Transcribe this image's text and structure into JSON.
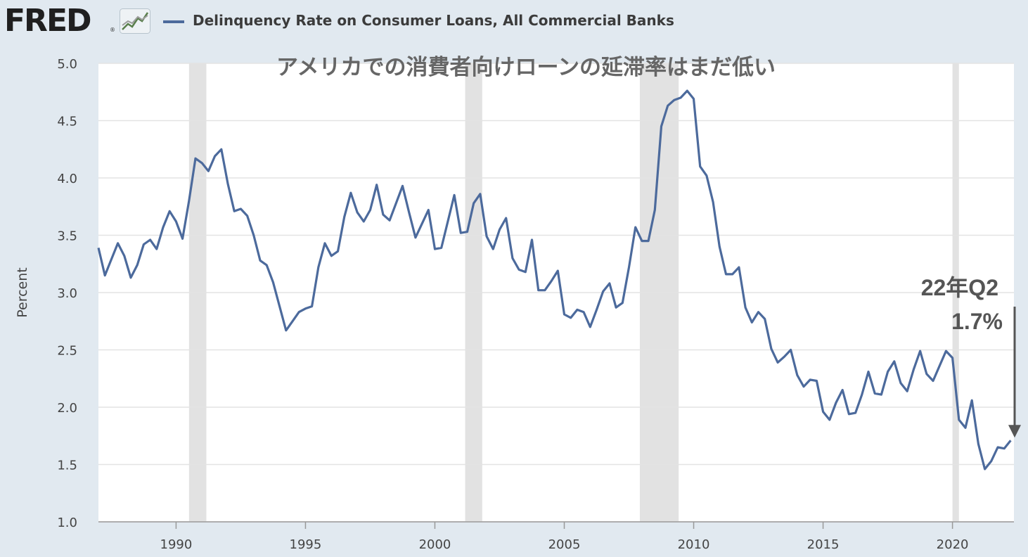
{
  "header": {
    "logo_text": "FRED",
    "logo_reg": "®",
    "series_legend": "Delinquency Rate on Consumer Loans, All Commercial Banks"
  },
  "colors": {
    "line": "#4c6a9c",
    "recession": "#e2e2e2",
    "background": "#e1e9f0",
    "plot_bg": "#ffffff",
    "annotation": "#555555"
  },
  "chart_data": {
    "type": "line",
    "title": "アメリカでの消費者向けローンの延滞率はまだ低い",
    "xlabel": "",
    "ylabel": "Percent",
    "xlim": [
      1987.0,
      2022.375
    ],
    "ylim": [
      1.0,
      5.0
    ],
    "yticks": [
      "1.0",
      "1.5",
      "2.0",
      "2.5",
      "3.0",
      "3.5",
      "4.0",
      "4.5",
      "5.0"
    ],
    "xticks": [
      "1990",
      "1995",
      "2000",
      "2005",
      "2010",
      "2015",
      "2020"
    ],
    "grid": true,
    "recessions": [
      [
        1990.5,
        1991.17
      ],
      [
        2001.17,
        2001.83
      ],
      [
        2007.92,
        2009.42
      ],
      [
        2020.0,
        2020.25
      ]
    ],
    "series": [
      {
        "name": "Delinquency Rate on Consumer Loans, All Commercial Banks",
        "x": [
          1987.0,
          1987.25,
          1987.5,
          1987.75,
          1988.0,
          1988.25,
          1988.5,
          1988.75,
          1989.0,
          1989.25,
          1989.5,
          1989.75,
          1990.0,
          1990.25,
          1990.5,
          1990.75,
          1991.0,
          1991.25,
          1991.5,
          1991.75,
          1992.0,
          1992.25,
          1992.5,
          1992.75,
          1993.0,
          1993.25,
          1993.5,
          1993.75,
          1994.0,
          1994.25,
          1994.5,
          1994.75,
          1995.0,
          1995.25,
          1995.5,
          1995.75,
          1996.0,
          1996.25,
          1996.5,
          1996.75,
          1997.0,
          1997.25,
          1997.5,
          1997.75,
          1998.0,
          1998.25,
          1998.5,
          1998.75,
          1999.0,
          1999.25,
          1999.5,
          1999.75,
          2000.0,
          2000.25,
          2000.5,
          2000.75,
          2001.0,
          2001.25,
          2001.5,
          2001.75,
          2002.0,
          2002.25,
          2002.5,
          2002.75,
          2003.0,
          2003.25,
          2003.5,
          2003.75,
          2004.0,
          2004.25,
          2004.5,
          2004.75,
          2005.0,
          2005.25,
          2005.5,
          2005.75,
          2006.0,
          2006.25,
          2006.5,
          2006.75,
          2007.0,
          2007.25,
          2007.5,
          2007.75,
          2008.0,
          2008.25,
          2008.5,
          2008.75,
          2009.0,
          2009.25,
          2009.5,
          2009.75,
          2010.0,
          2010.25,
          2010.5,
          2010.75,
          2011.0,
          2011.25,
          2011.5,
          2011.75,
          2012.0,
          2012.25,
          2012.5,
          2012.75,
          2013.0,
          2013.25,
          2013.5,
          2013.75,
          2014.0,
          2014.25,
          2014.5,
          2014.75,
          2015.0,
          2015.25,
          2015.5,
          2015.75,
          2016.0,
          2016.25,
          2016.5,
          2016.75,
          2017.0,
          2017.25,
          2017.5,
          2017.75,
          2018.0,
          2018.25,
          2018.5,
          2018.75,
          2019.0,
          2019.25,
          2019.5,
          2019.75,
          2020.0,
          2020.25,
          2020.5,
          2020.75,
          2021.0,
          2021.25,
          2021.5,
          2021.75,
          2022.0,
          2022.25
        ],
        "values": [
          3.39,
          3.15,
          3.29,
          3.43,
          3.32,
          3.13,
          3.24,
          3.42,
          3.46,
          3.38,
          3.57,
          3.71,
          3.62,
          3.47,
          3.8,
          4.17,
          4.13,
          4.06,
          4.19,
          4.25,
          3.95,
          3.71,
          3.73,
          3.67,
          3.5,
          3.28,
          3.24,
          3.09,
          2.88,
          2.67,
          2.75,
          2.83,
          2.86,
          2.88,
          3.22,
          3.43,
          3.32,
          3.36,
          3.66,
          3.87,
          3.7,
          3.62,
          3.72,
          3.94,
          3.68,
          3.63,
          3.78,
          3.93,
          3.7,
          3.48,
          3.6,
          3.72,
          3.38,
          3.39,
          3.62,
          3.85,
          3.52,
          3.53,
          3.78,
          3.86,
          3.49,
          3.38,
          3.55,
          3.65,
          3.3,
          3.2,
          3.18,
          3.46,
          3.02,
          3.02,
          3.1,
          3.19,
          2.81,
          2.78,
          2.85,
          2.83,
          2.7,
          2.85,
          3.01,
          3.08,
          2.87,
          2.91,
          3.22,
          3.57,
          3.45,
          3.45,
          3.72,
          4.45,
          4.63,
          4.68,
          4.7,
          4.76,
          4.69,
          4.1,
          4.02,
          3.79,
          3.4,
          3.16,
          3.16,
          3.22,
          2.87,
          2.74,
          2.83,
          2.77,
          2.51,
          2.39,
          2.44,
          2.5,
          2.28,
          2.18,
          2.24,
          2.23,
          1.96,
          1.89,
          2.04,
          2.15,
          1.94,
          1.95,
          2.11,
          2.31,
          2.12,
          2.11,
          2.31,
          2.4,
          2.21,
          2.14,
          2.33,
          2.49,
          2.29,
          2.23,
          2.36,
          2.49,
          2.43,
          1.89,
          1.82,
          2.06,
          1.68,
          1.46,
          1.53,
          1.65,
          1.64,
          1.71
        ]
      }
    ],
    "annotations": [
      {
        "line1": "22年Q2",
        "line2": "1.7%",
        "at_x": 2022.25,
        "at_y": 1.71
      }
    ]
  }
}
